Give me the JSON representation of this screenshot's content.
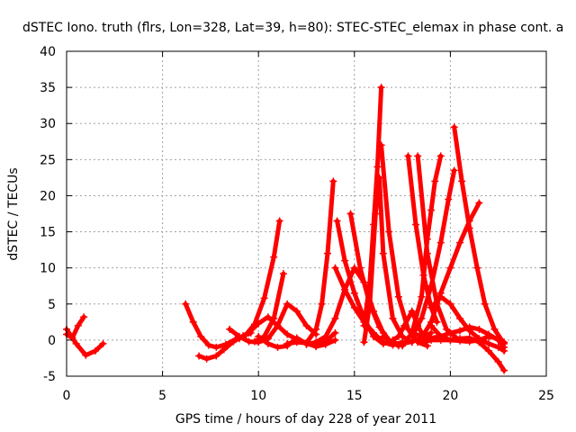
{
  "chart_data": {
    "type": "scatter",
    "title": "dSTEC Iono. truth (flrs, Lon=328, Lat=39, h=80): STEC-STEC_elemax in phase cont. a",
    "xlabel": "GPS time / hours of day 228 of year 2011",
    "ylabel": "dSTEC  / TECUs",
    "xlim": [
      0,
      25
    ],
    "ylim": [
      -5,
      40
    ],
    "xticks": [
      "0",
      "5",
      "10",
      "15",
      "20",
      "25"
    ],
    "yticks": [
      "-5",
      "0",
      "5",
      "10",
      "15",
      "20",
      "25",
      "30",
      "35",
      "40"
    ],
    "grid": true,
    "marker": "+",
    "color": "#ff0000",
    "series": [
      {
        "x": [
          0,
          0.3,
          0.6,
          0.9
        ],
        "y": [
          0.8,
          0.3,
          2.0,
          3.2
        ]
      },
      {
        "x": [
          0,
          0.5,
          1.0,
          1.5,
          1.9
        ],
        "y": [
          1.5,
          -0.5,
          -2.1,
          -1.5,
          -0.5
        ]
      },
      {
        "x": [
          6.2,
          6.6,
          7.0,
          7.4,
          7.8,
          8.3,
          8.8
        ],
        "y": [
          5.0,
          2.5,
          0.5,
          -0.7,
          -1.0,
          -0.6,
          0.1
        ]
      },
      {
        "x": [
          6.9,
          7.3,
          7.8,
          8.2,
          8.7,
          9.2,
          9.6
        ],
        "y": [
          -2.2,
          -2.6,
          -2.2,
          -1.3,
          -0.2,
          0.6,
          1.0
        ]
      },
      {
        "x": [
          8.5,
          9.0,
          9.5,
          10.0,
          10.5,
          11.0,
          11.5,
          12.0,
          12.5,
          13.0
        ],
        "y": [
          1.5,
          0.5,
          -0.2,
          -0.3,
          0.2,
          2.0,
          5.0,
          4.0,
          2.0,
          0.8
        ]
      },
      {
        "x": [
          9.0,
          9.5,
          10.0,
          10.5,
          11.0,
          11.5,
          12.0,
          12.5,
          13.0,
          13.5,
          14.0
        ],
        "y": [
          0.2,
          1.0,
          2.3,
          3.2,
          2.0,
          0.8,
          0.1,
          -0.4,
          -0.9,
          -0.6,
          0.0
        ]
      },
      {
        "x": [
          8.8,
          9.3,
          9.8,
          10.3,
          10.8,
          11.1
        ],
        "y": [
          0.1,
          0.6,
          2.2,
          5.8,
          11.5,
          16.5
        ]
      },
      {
        "x": [
          9.8,
          10.3,
          10.8,
          11.3
        ],
        "y": [
          -0.2,
          0.5,
          3.0,
          9.2
        ]
      },
      {
        "x": [
          10.0,
          10.5,
          11.0,
          11.5,
          12.0,
          12.5,
          13.0,
          13.5,
          14.0
        ],
        "y": [
          0.5,
          -0.5,
          -1.0,
          -0.8,
          0.3,
          -0.5,
          -0.8,
          -0.2,
          1.0
        ]
      },
      {
        "x": [
          11.5,
          12.0,
          12.5,
          13.0,
          13.3,
          13.6,
          13.9
        ],
        "y": [
          -0.5,
          -0.3,
          -0.4,
          1.5,
          5.0,
          12.0,
          22.0
        ]
      },
      {
        "x": [
          12.5,
          13.0,
          13.5,
          14.0,
          14.5,
          15.0,
          15.5,
          16.0,
          16.5
        ],
        "y": [
          -0.6,
          -0.3,
          0.5,
          3.0,
          7.0,
          10.0,
          8.0,
          4.0,
          1.0
        ]
      },
      {
        "x": [
          14.1,
          14.5,
          15.0,
          15.5,
          16.0,
          16.5,
          17.0
        ],
        "y": [
          16.5,
          11.0,
          6.5,
          3.0,
          0.5,
          -0.5,
          -0.3
        ]
      },
      {
        "x": [
          14.0,
          14.5,
          15.0,
          15.5,
          16.0,
          16.5,
          17.0,
          17.5
        ],
        "y": [
          10.0,
          7.0,
          4.5,
          2.5,
          1.0,
          -0.3,
          -0.7,
          -0.3
        ]
      },
      {
        "x": [
          14.8,
          15.3,
          15.8,
          16.3,
          16.8,
          17.3
        ],
        "y": [
          17.5,
          10.0,
          5.0,
          1.8,
          0.0,
          -0.8
        ]
      },
      {
        "x": [
          15.5,
          15.8,
          16.1,
          16.3,
          16.5,
          17.0,
          17.5,
          18.0
        ],
        "y": [
          -0.3,
          5.0,
          17.5,
          22.5,
          12.0,
          3.0,
          0.5,
          -0.3
        ]
      },
      {
        "x": [
          15.5,
          15.8,
          16.0,
          16.2,
          16.4
        ],
        "y": [
          2.0,
          8.0,
          16.0,
          24.0,
          35.0
        ]
      },
      {
        "x": [
          16.4,
          16.8,
          17.3,
          17.8,
          18.3,
          18.8
        ],
        "y": [
          27.0,
          15.0,
          6.0,
          1.5,
          -0.3,
          -0.8
        ]
      },
      {
        "x": [
          16.5,
          17.0,
          17.5,
          18.0,
          18.5,
          19.0
        ],
        "y": [
          0.5,
          -0.4,
          -0.5,
          -0.2,
          0.2,
          1.0
        ]
      },
      {
        "x": [
          17.0,
          17.3,
          17.6,
          18.0,
          18.3,
          18.6
        ],
        "y": [
          0.0,
          0.5,
          2.0,
          4.0,
          2.0,
          0.5
        ]
      },
      {
        "x": [
          17.8,
          18.2,
          18.6,
          19.0,
          19.3
        ],
        "y": [
          25.5,
          16.0,
          9.0,
          4.5,
          2.5
        ]
      },
      {
        "x": [
          18.3,
          18.8,
          19.3,
          19.8,
          20.3,
          20.8
        ],
        "y": [
          25.5,
          12.0,
          5.0,
          1.5,
          0.3,
          0.0
        ]
      },
      {
        "x": [
          17.5,
          18.0,
          18.5,
          18.8,
          19.0,
          19.2,
          19.5
        ],
        "y": [
          -0.8,
          1.0,
          6.0,
          14.0,
          18.0,
          22.0,
          25.5
        ]
      },
      {
        "x": [
          18.0,
          18.5,
          19.0,
          19.5,
          19.9,
          20.2
        ],
        "y": [
          0.5,
          3.0,
          7.5,
          13.5,
          19.5,
          23.5
        ]
      },
      {
        "x": [
          18.5,
          19.0,
          19.5,
          20.0,
          20.5,
          21.0,
          21.5
        ],
        "y": [
          0.3,
          2.5,
          6.5,
          10.0,
          13.5,
          16.5,
          19.0
        ]
      },
      {
        "x": [
          19.0,
          19.5,
          20.0,
          20.5,
          21.0,
          21.5,
          22.0,
          22.5,
          22.8
        ],
        "y": [
          4.5,
          6.0,
          5.0,
          3.0,
          1.3,
          0.2,
          -0.5,
          -1.0,
          -1.5
        ]
      },
      {
        "x": [
          20.2,
          20.6,
          21.0,
          21.4,
          21.8,
          22.3,
          22.8
        ],
        "y": [
          29.5,
          22.0,
          15.5,
          10.0,
          5.0,
          1.5,
          -0.5
        ]
      },
      {
        "x": [
          19.0,
          19.5,
          20.0,
          20.5,
          21.0,
          21.5,
          22.0,
          22.5,
          22.8
        ],
        "y": [
          2.0,
          0.5,
          0.0,
          0.2,
          0.3,
          -0.3,
          -1.5,
          -3.0,
          -4.2
        ]
      },
      {
        "x": [
          18.0,
          18.5,
          19.0,
          19.5,
          20.0,
          20.5,
          21.0,
          21.5,
          22.0,
          22.5,
          22.8
        ],
        "y": [
          1.0,
          0.5,
          0.3,
          0.5,
          1.0,
          1.3,
          1.8,
          1.5,
          0.8,
          0.0,
          -1.0
        ]
      },
      {
        "x": [
          18.5,
          19.0,
          19.5,
          20.0,
          20.5,
          21.0,
          21.5,
          22.0,
          22.5,
          22.8
        ],
        "y": [
          -0.3,
          0.0,
          0.0,
          0.0,
          -0.1,
          -0.2,
          0.0,
          0.5,
          0.2,
          -0.3
        ]
      }
    ]
  }
}
